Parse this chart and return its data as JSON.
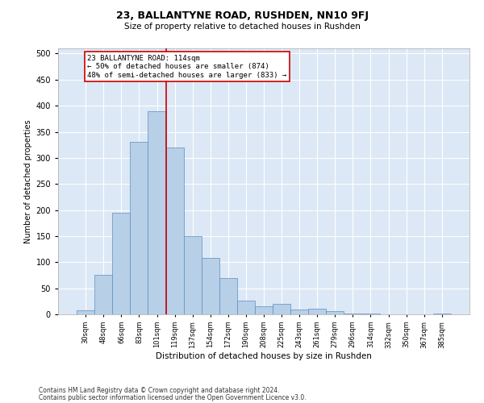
{
  "title": "23, BALLANTYNE ROAD, RUSHDEN, NN10 9FJ",
  "subtitle": "Size of property relative to detached houses in Rushden",
  "xlabel": "Distribution of detached houses by size in Rushden",
  "ylabel": "Number of detached properties",
  "categories": [
    "30sqm",
    "48sqm",
    "66sqm",
    "83sqm",
    "101sqm",
    "119sqm",
    "137sqm",
    "154sqm",
    "172sqm",
    "190sqm",
    "208sqm",
    "225sqm",
    "243sqm",
    "261sqm",
    "279sqm",
    "296sqm",
    "314sqm",
    "332sqm",
    "350sqm",
    "367sqm",
    "385sqm"
  ],
  "values": [
    7,
    75,
    195,
    330,
    390,
    320,
    150,
    108,
    70,
    27,
    15,
    20,
    10,
    11,
    6,
    2,
    1,
    0,
    0,
    0,
    1
  ],
  "bar_color": "#b8cfe8",
  "bar_edge_color": "#5a8fc0",
  "background_color": "#dce8f5",
  "vline_x": 4.5,
  "vline_color": "#cc0000",
  "annotation_line1": "23 BALLANTYNE ROAD: 114sqm",
  "annotation_line2": "← 50% of detached houses are smaller (874)",
  "annotation_line3": "48% of semi-detached houses are larger (833) →",
  "annotation_box_facecolor": "white",
  "annotation_box_edgecolor": "#cc0000",
  "ylim": [
    0,
    510
  ],
  "yticks": [
    0,
    50,
    100,
    150,
    200,
    250,
    300,
    350,
    400,
    450,
    500
  ],
  "footer_line1": "Contains HM Land Registry data © Crown copyright and database right 2024.",
  "footer_line2": "Contains public sector information licensed under the Open Government Licence v3.0.",
  "title_fontsize": 9,
  "subtitle_fontsize": 7.5,
  "ylabel_fontsize": 7,
  "xlabel_fontsize": 7.5,
  "ytick_fontsize": 7,
  "xtick_fontsize": 6,
  "annotation_fontsize": 6.5,
  "footer_fontsize": 5.5
}
